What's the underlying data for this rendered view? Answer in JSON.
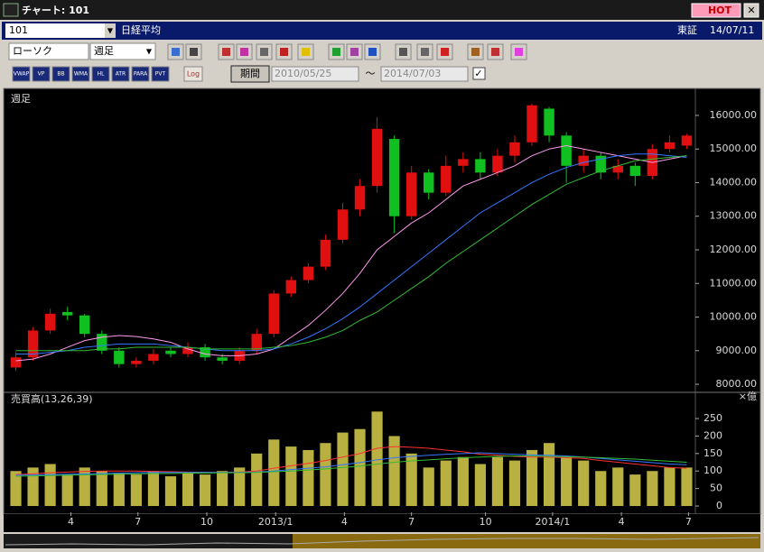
{
  "ui": {
    "window_title": "チャート: 101",
    "hot": "HOT",
    "code": "101",
    "name": "日経平均",
    "market": "東証",
    "date": "14/07/11",
    "chart_kind": "ローソク",
    "period_kind": "週足",
    "indicator_buttons": [
      "VWAP",
      "VP",
      "BB",
      "WMA",
      "HL",
      "ATR",
      "PARA",
      "PVT"
    ],
    "log_button": "Log",
    "range_button": "期間",
    "range_from": "2010/05/25",
    "range_sep": "〜",
    "range_to": "2014/07/03"
  },
  "chart_data": {
    "type": "candlestick",
    "title": "週足",
    "categories": [
      null,
      null,
      null,
      null,
      null,
      null,
      null,
      null,
      null,
      null,
      null,
      null,
      null,
      null,
      null,
      null,
      null,
      null,
      null,
      null,
      null,
      null,
      null,
      null,
      null,
      null,
      null,
      null,
      null,
      null,
      null,
      null,
      null,
      null,
      null,
      null,
      null,
      null,
      null,
      null
    ],
    "xlim": [
      -0.5,
      39.5
    ],
    "xticks": [
      {
        "value": 3.2,
        "label": "4"
      },
      {
        "value": 7.1,
        "label": "7"
      },
      {
        "value": 11.1,
        "label": "10"
      },
      {
        "value": 15.1,
        "label": "2013/1"
      },
      {
        "value": 19.1,
        "label": "4"
      },
      {
        "value": 23.0,
        "label": "7"
      },
      {
        "value": 27.3,
        "label": "10"
      },
      {
        "value": 31.2,
        "label": "2014/1"
      },
      {
        "value": 35.2,
        "label": "4"
      },
      {
        "value": 39.1,
        "label": "7"
      }
    ],
    "open": [
      8500,
      8800,
      9600,
      10150,
      10050,
      9500,
      9000,
      8600,
      8700,
      9000,
      8900,
      9100,
      8800,
      8700,
      9000,
      9500,
      10700,
      11100,
      11500,
      12300,
      13200,
      13900,
      15300,
      13000,
      14300,
      13700,
      14500,
      14700,
      14300,
      14800,
      15200,
      16200,
      15400,
      14500,
      14800,
      14300,
      14500,
      14200,
      15000,
      15100
    ],
    "high": [
      8950,
      9700,
      10250,
      10300,
      10100,
      9600,
      9100,
      8800,
      9050,
      9100,
      9250,
      9200,
      8900,
      9100,
      9650,
      10800,
      11200,
      11600,
      12450,
      13400,
      14100,
      15950,
      15400,
      14500,
      14400,
      14800,
      14900,
      14900,
      15000,
      15400,
      16350,
      16250,
      15500,
      15000,
      14900,
      14700,
      14600,
      15150,
      15400,
      15450
    ],
    "low": [
      8400,
      8700,
      9500,
      9900,
      9400,
      8900,
      8500,
      8500,
      8600,
      8800,
      8800,
      8700,
      8600,
      8600,
      8900,
      9400,
      10600,
      11000,
      11400,
      12200,
      13000,
      13700,
      12500,
      12900,
      13500,
      13600,
      14300,
      14100,
      14200,
      14600,
      15100,
      15200,
      14000,
      14300,
      14100,
      14100,
      13900,
      14100,
      14900,
      15000
    ],
    "close": [
      8800,
      9600,
      10100,
      10050,
      9500,
      9000,
      8600,
      8700,
      8900,
      8900,
      9100,
      8800,
      8700,
      9000,
      9500,
      10700,
      11100,
      11500,
      12300,
      13200,
      13900,
      15600,
      13000,
      14300,
      13700,
      14500,
      14700,
      14300,
      14800,
      15200,
      16300,
      15400,
      14500,
      14800,
      14300,
      14500,
      14200,
      15000,
      15200,
      15400
    ],
    "up_color": "#e01010",
    "down_color": "#10c020",
    "moving_averages": [
      {
        "color": "#ff99ee",
        "values": [
          8700,
          8750,
          8900,
          9100,
          9300,
          9400,
          9450,
          9420,
          9350,
          9250,
          9050,
          8900,
          8850,
          8850,
          8900,
          9050,
          9400,
          9750,
          10200,
          10700,
          11300,
          12000,
          12400,
          12800,
          13100,
          13500,
          13900,
          14100,
          14300,
          14500,
          14800,
          15000,
          15100,
          15000,
          14900,
          14800,
          14700,
          14600,
          14700,
          14800
        ]
      },
      {
        "color": "#3377ff",
        "values": [
          8900,
          8900,
          8950,
          9000,
          9100,
          9150,
          9200,
          9200,
          9200,
          9150,
          9100,
          9050,
          9000,
          9000,
          9000,
          9050,
          9200,
          9400,
          9650,
          9950,
          10300,
          10700,
          11100,
          11500,
          11900,
          12300,
          12700,
          13100,
          13400,
          13700,
          14000,
          14250,
          14450,
          14600,
          14700,
          14800,
          14850,
          14850,
          14800,
          14750
        ]
      },
      {
        "color": "#33bb33",
        "values": [
          9000,
          9000,
          9000,
          9000,
          9000,
          9050,
          9050,
          9100,
          9100,
          9100,
          9100,
          9050,
          9050,
          9050,
          9050,
          9100,
          9150,
          9250,
          9400,
          9600,
          9900,
          10150,
          10500,
          10850,
          11200,
          11600,
          11950,
          12300,
          12650,
          13000,
          13350,
          13650,
          13950,
          14150,
          14350,
          14500,
          14650,
          14700,
          14750,
          14800
        ]
      }
    ],
    "ylim": [
      7840,
      16750
    ],
    "yticks": [
      {
        "value": 8000,
        "label": "8000.00"
      },
      {
        "value": 9000,
        "label": "9000.00"
      },
      {
        "value": 10000,
        "label": "10000.00"
      },
      {
        "value": 11000,
        "label": "11000.00"
      },
      {
        "value": 12000,
        "label": "12000.00"
      },
      {
        "value": 13000,
        "label": "13000.00"
      },
      {
        "value": 14000,
        "label": "14000.00"
      },
      {
        "value": 15000,
        "label": "15000.00"
      },
      {
        "value": 16000,
        "label": "16000.00"
      }
    ],
    "volume": {
      "title": "売買高(13,26,39)",
      "unit": "×億",
      "color": "#b8b040",
      "values": [
        100,
        110,
        120,
        90,
        110,
        100,
        95,
        90,
        100,
        85,
        95,
        90,
        100,
        110,
        150,
        190,
        170,
        160,
        180,
        210,
        220,
        270,
        200,
        150,
        110,
        130,
        140,
        120,
        140,
        130,
        160,
        180,
        140,
        130,
        100,
        110,
        90,
        100,
        110,
        110
      ],
      "moving_averages": [
        {
          "color": "#ff3030",
          "values": [
            90,
            92,
            95,
            97,
            99,
            100,
            100,
            100,
            99,
            98,
            97,
            96,
            96,
            97,
            100,
            108,
            115,
            122,
            130,
            140,
            150,
            165,
            170,
            168,
            165,
            160,
            155,
            148,
            145,
            142,
            140,
            140,
            138,
            136,
            130,
            125,
            120,
            115,
            110,
            108
          ]
        },
        {
          "color": "#3377ff",
          "values": [
            88,
            89,
            90,
            91,
            92,
            93,
            94,
            95,
            96,
            96,
            96,
            96,
            96,
            96,
            97,
            100,
            104,
            108,
            112,
            118,
            124,
            132,
            138,
            142,
            145,
            148,
            150,
            152,
            150,
            148,
            146,
            145,
            143,
            140,
            136,
            132,
            128,
            124,
            120,
            118
          ]
        },
        {
          "color": "#33bb33",
          "values": [
            85,
            86,
            87,
            88,
            89,
            90,
            91,
            92,
            93,
            93,
            94,
            94,
            95,
            95,
            96,
            98,
            100,
            103,
            106,
            110,
            114,
            120,
            125,
            129,
            132,
            135,
            138,
            140,
            142,
            143,
            143,
            142,
            141,
            140,
            138,
            136,
            134,
            131,
            128,
            125
          ]
        }
      ],
      "ylim": [
        -18,
        312
      ],
      "yticks": [
        0,
        50,
        100,
        150,
        200,
        250
      ]
    }
  }
}
